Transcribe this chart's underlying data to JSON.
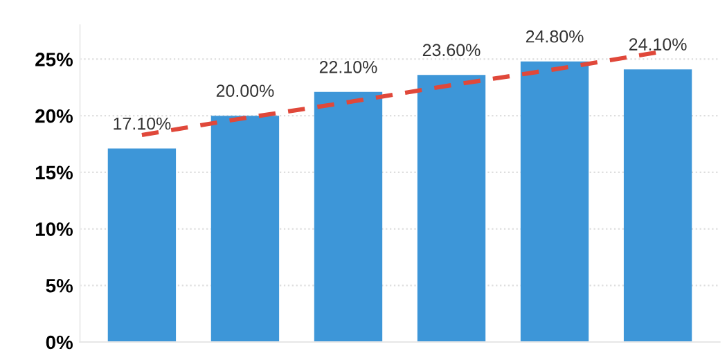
{
  "chart_data": {
    "type": "bar",
    "categories": [
      null,
      null,
      null,
      null,
      null,
      null
    ],
    "series": [
      {
        "color": "#3d96d8",
        "values": [
          17.1,
          20.0,
          22.1,
          23.6,
          24.8,
          24.1
        ],
        "value_labels": [
          "17.10%",
          "20.00%",
          "22.10%",
          "23.60%",
          "24.80%",
          "24.10%"
        ]
      },
      {
        "type": "line",
        "color": "#e0483a",
        "line_style": "dashed",
        "values": [
          18.3,
          19.8,
          21.2,
          22.7,
          24.1,
          25.6
        ]
      }
    ],
    "ylim": [
      0,
      28
    ],
    "yticks": [
      {
        "value": 0,
        "label": "0%"
      },
      {
        "value": 5,
        "label": "5%"
      },
      {
        "value": 10,
        "label": "10%"
      },
      {
        "value": 15,
        "label": "15%"
      },
      {
        "value": 20,
        "label": "20%"
      },
      {
        "value": 25,
        "label": "25%"
      }
    ],
    "grid": "y",
    "tick_labels": "y",
    "legend": false
  }
}
